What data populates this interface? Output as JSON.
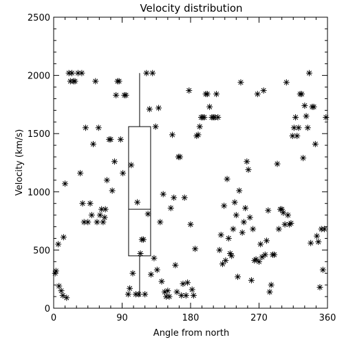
{
  "chart_data": {
    "type": "scatter",
    "title": "Velocity distribution",
    "xlabel": "Angle from north",
    "ylabel": "Velocity (km/s)",
    "xlim": [
      0,
      360
    ],
    "ylim": [
      0,
      2500
    ],
    "xticks": [
      0,
      90,
      180,
      270,
      360
    ],
    "yticks": [
      0,
      500,
      1000,
      1500,
      2000,
      2500
    ],
    "marker": "asterisk",
    "grid": false,
    "box": {
      "x_center": 113,
      "whisker_low": 100,
      "q1": 450,
      "median": 850,
      "q3": 1560,
      "whisker_high": 2020
    },
    "points": [
      [
        2,
        300
      ],
      [
        3,
        320
      ],
      [
        6,
        550
      ],
      [
        7,
        190
      ],
      [
        10,
        150
      ],
      [
        12,
        110
      ],
      [
        13,
        610
      ],
      [
        15,
        1070
      ],
      [
        17,
        90
      ],
      [
        20,
        2020
      ],
      [
        22,
        1950
      ],
      [
        24,
        2020
      ],
      [
        26,
        1950
      ],
      [
        28,
        1950
      ],
      [
        32,
        2020
      ],
      [
        35,
        1160
      ],
      [
        37,
        2020
      ],
      [
        38,
        900
      ],
      [
        40,
        740
      ],
      [
        42,
        1550
      ],
      [
        45,
        740
      ],
      [
        48,
        900
      ],
      [
        50,
        800
      ],
      [
        52,
        1410
      ],
      [
        55,
        1950
      ],
      [
        57,
        740
      ],
      [
        59,
        1550
      ],
      [
        61,
        800
      ],
      [
        63,
        850
      ],
      [
        65,
        740
      ],
      [
        67,
        780
      ],
      [
        68,
        850
      ],
      [
        70,
        1100
      ],
      [
        73,
        1450
      ],
      [
        75,
        1450
      ],
      [
        77,
        1010
      ],
      [
        80,
        1260
      ],
      [
        82,
        1830
      ],
      [
        84,
        1950
      ],
      [
        86,
        1950
      ],
      [
        88,
        1450
      ],
      [
        91,
        1160
      ],
      [
        93,
        1830
      ],
      [
        95,
        1830
      ],
      [
        98,
        120
      ],
      [
        100,
        170
      ],
      [
        102,
        1230
      ],
      [
        104,
        300
      ],
      [
        108,
        120
      ],
      [
        110,
        910
      ],
      [
        112,
        120
      ],
      [
        114,
        470
      ],
      [
        116,
        590
      ],
      [
        118,
        590
      ],
      [
        120,
        120
      ],
      [
        122,
        2020
      ],
      [
        124,
        810
      ],
      [
        126,
        1710
      ],
      [
        128,
        290
      ],
      [
        130,
        2020
      ],
      [
        132,
        430
      ],
      [
        134,
        1560
      ],
      [
        136,
        330
      ],
      [
        138,
        1720
      ],
      [
        140,
        740
      ],
      [
        142,
        230
      ],
      [
        144,
        980
      ],
      [
        146,
        140
      ],
      [
        148,
        100
      ],
      [
        150,
        150
      ],
      [
        152,
        100
      ],
      [
        154,
        860
      ],
      [
        156,
        1490
      ],
      [
        158,
        950
      ],
      [
        160,
        370
      ],
      [
        162,
        140
      ],
      [
        164,
        1300
      ],
      [
        166,
        1300
      ],
      [
        168,
        110
      ],
      [
        170,
        210
      ],
      [
        172,
        950
      ],
      [
        174,
        110
      ],
      [
        176,
        220
      ],
      [
        178,
        1870
      ],
      [
        180,
        720
      ],
      [
        182,
        160
      ],
      [
        184,
        110
      ],
      [
        186,
        510
      ],
      [
        188,
        1480
      ],
      [
        190,
        1490
      ],
      [
        192,
        1560
      ],
      [
        194,
        1640
      ],
      [
        196,
        1640
      ],
      [
        198,
        1640
      ],
      [
        200,
        1840
      ],
      [
        202,
        1840
      ],
      [
        205,
        1730
      ],
      [
        208,
        1640
      ],
      [
        210,
        1640
      ],
      [
        212,
        1640
      ],
      [
        214,
        1840
      ],
      [
        216,
        1640
      ],
      [
        218,
        500
      ],
      [
        220,
        630
      ],
      [
        222,
        380
      ],
      [
        224,
        880
      ],
      [
        226,
        410
      ],
      [
        228,
        1110
      ],
      [
        230,
        600
      ],
      [
        232,
        470
      ],
      [
        234,
        450
      ],
      [
        236,
        680
      ],
      [
        238,
        910
      ],
      [
        240,
        800
      ],
      [
        242,
        270
      ],
      [
        244,
        1010
      ],
      [
        246,
        1940
      ],
      [
        248,
        650
      ],
      [
        250,
        740
      ],
      [
        252,
        860
      ],
      [
        254,
        1260
      ],
      [
        256,
        1190
      ],
      [
        258,
        780
      ],
      [
        260,
        240
      ],
      [
        262,
        680
      ],
      [
        264,
        410
      ],
      [
        266,
        420
      ],
      [
        268,
        1840
      ],
      [
        270,
        400
      ],
      [
        272,
        550
      ],
      [
        274,
        440
      ],
      [
        276,
        1870
      ],
      [
        278,
        460
      ],
      [
        280,
        580
      ],
      [
        282,
        840
      ],
      [
        284,
        140
      ],
      [
        286,
        200
      ],
      [
        288,
        460
      ],
      [
        290,
        460
      ],
      [
        294,
        1240
      ],
      [
        296,
        680
      ],
      [
        298,
        850
      ],
      [
        300,
        850
      ],
      [
        302,
        820
      ],
      [
        304,
        720
      ],
      [
        306,
        1940
      ],
      [
        308,
        800
      ],
      [
        310,
        720
      ],
      [
        312,
        730
      ],
      [
        314,
        1480
      ],
      [
        316,
        1550
      ],
      [
        318,
        1640
      ],
      [
        320,
        1480
      ],
      [
        322,
        1550
      ],
      [
        324,
        1840
      ],
      [
        326,
        1840
      ],
      [
        328,
        1290
      ],
      [
        330,
        1740
      ],
      [
        332,
        1650
      ],
      [
        334,
        1550
      ],
      [
        336,
        2020
      ],
      [
        338,
        560
      ],
      [
        340,
        1730
      ],
      [
        342,
        1730
      ],
      [
        344,
        1410
      ],
      [
        346,
        620
      ],
      [
        348,
        570
      ],
      [
        350,
        180
      ],
      [
        352,
        680
      ],
      [
        354,
        330
      ],
      [
        356,
        680
      ],
      [
        358,
        1640
      ]
    ]
  }
}
